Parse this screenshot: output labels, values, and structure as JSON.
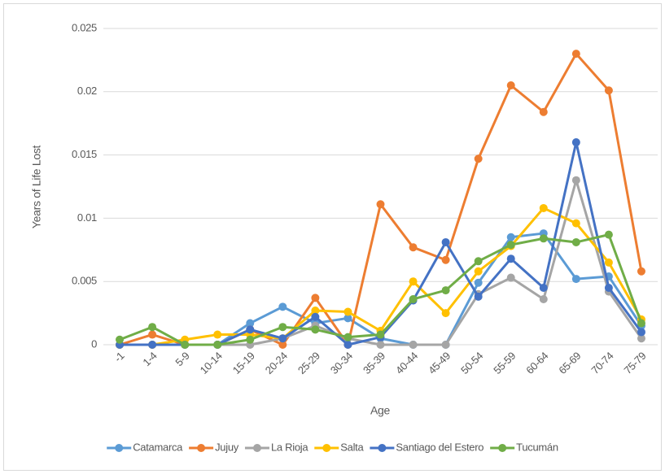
{
  "chart_data": {
    "type": "line",
    "x_label": "Age",
    "y_label": "Years of Life Lost",
    "categories": [
      "-1",
      "1-4",
      "5-9",
      "10-14",
      "15-19",
      "20-24",
      "25-29",
      "30-34",
      "35-39",
      "40-44",
      "45-49",
      "50-54",
      "55-59",
      "60-64",
      "65-69",
      "70-74",
      "75-79"
    ],
    "series": [
      {
        "name": "Catamarca",
        "color": "#5b9bd5",
        "values": [
          0,
          0,
          0,
          0,
          0.0017,
          0.003,
          0.0017,
          0.0021,
          0.0005,
          0,
          0,
          0.0049,
          0.0085,
          0.0088,
          0.0052,
          0.0054,
          0.0015
        ]
      },
      {
        "name": "Jujuy",
        "color": "#ed7d31",
        "values": [
          0,
          0.0008,
          0,
          0,
          0.0012,
          0,
          0.0037,
          0,
          0.0111,
          0.0077,
          0.0067,
          0.0147,
          0.0205,
          0.0184,
          0.023,
          0.0201,
          0.0058
        ]
      },
      {
        "name": "La Rioja",
        "color": "#a5a5a5",
        "values": [
          0,
          0,
          0,
          0,
          0,
          0.0005,
          0.0015,
          0.0005,
          0,
          0,
          0,
          0.004,
          0.0053,
          0.0036,
          0.013,
          0.0042,
          0.0005
        ]
      },
      {
        "name": "Salta",
        "color": "#ffc000",
        "values": [
          0,
          0,
          0.0004,
          0.0008,
          0.0008,
          0.0005,
          0.0027,
          0.0026,
          0.0011,
          0.005,
          0.0025,
          0.0058,
          0.0078,
          0.0108,
          0.0096,
          0.0065,
          0.002
        ]
      },
      {
        "name": "Santiago del Estero",
        "color": "#4472c4",
        "values": [
          0,
          0,
          0,
          0,
          0.0012,
          0.0005,
          0.0022,
          0,
          0.0006,
          0.0035,
          0.0081,
          0.0038,
          0.0068,
          0.0045,
          0.016,
          0.0045,
          0.001
        ]
      },
      {
        "name": "Tucumán",
        "color": "#70ad47",
        "values": [
          0.0004,
          0.0014,
          0,
          0,
          0.0004,
          0.0014,
          0.0012,
          0.0006,
          0.0008,
          0.0036,
          0.0043,
          0.0066,
          0.0079,
          0.0084,
          0.0081,
          0.0087,
          0.0017
        ]
      }
    ],
    "ylim": [
      0,
      0.025
    ],
    "yticks": [
      0,
      0.005,
      0.01,
      0.015,
      0.02,
      0.025
    ],
    "grid": true,
    "legend": "bottom"
  }
}
